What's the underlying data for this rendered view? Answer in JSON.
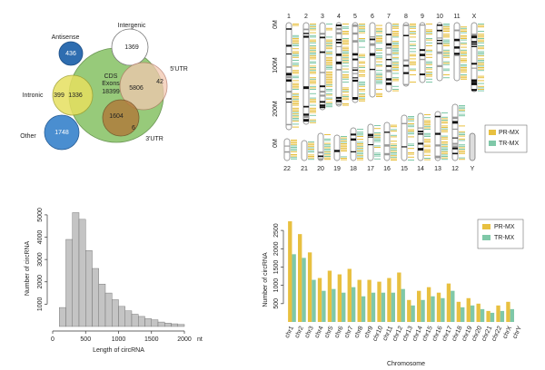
{
  "venn": {
    "antisense": {
      "label": "Antisense",
      "count": "436"
    },
    "intergenic": {
      "label": "Intergenic",
      "count": "1369"
    },
    "intronic": {
      "label": "Intronic",
      "counts": [
        "399",
        "1336"
      ]
    },
    "cds": {
      "label": [
        "CDS",
        "Exons"
      ],
      "count": "18399"
    },
    "utr5": {
      "label": "5'UTR",
      "counts": [
        "5806",
        "42"
      ]
    },
    "utr3": {
      "label": "3'UTR",
      "counts": [
        "1604",
        "6"
      ]
    },
    "other": {
      "label": "Other",
      "count": "1748"
    }
  },
  "ideogram": {
    "top_chromosomes": [
      "1",
      "2",
      "3",
      "4",
      "5",
      "6",
      "7",
      "8",
      "9",
      "10",
      "11",
      "X"
    ],
    "bottom_chromosomes": [
      "22",
      "21",
      "20",
      "19",
      "18",
      "17",
      "16",
      "15",
      "14",
      "13",
      "12",
      "Y"
    ],
    "axis_labels": [
      "0M",
      "100M",
      "200M",
      "0M"
    ],
    "legend": [
      {
        "name": "PR-MX",
        "color": "#e8c040"
      },
      {
        "name": "TR-MX",
        "color": "#7fc8a8"
      }
    ]
  },
  "chart_data": [
    {
      "type": "histogram",
      "bins": [
        100,
        200,
        300,
        400,
        500,
        600,
        700,
        800,
        900,
        1000,
        1100,
        1200,
        1300,
        1400,
        1500,
        1600,
        1700,
        1800,
        1900,
        2000
      ],
      "values": [
        850,
        3900,
        5100,
        4800,
        3400,
        2600,
        1900,
        1500,
        1200,
        900,
        700,
        550,
        450,
        350,
        300,
        200,
        150,
        120,
        90
      ],
      "color": "#c4c4c4",
      "xlim": [
        0,
        2000
      ],
      "xticks": [
        0,
        500,
        1000,
        1500,
        2000
      ],
      "ylim": [
        0,
        5200
      ],
      "yticks": [
        1000,
        2000,
        3000,
        4000,
        5000
      ],
      "x_label": "Length of circRNA",
      "x_unit": "nt",
      "y_label": "Number of circRNA"
    },
    {
      "type": "bar",
      "categories": [
        "chr1",
        "chr2",
        "chr3",
        "chr4",
        "chr5",
        "chr6",
        "chr7",
        "chr8",
        "chr9",
        "chr10",
        "chr11",
        "chr12",
        "chr13",
        "chr14",
        "chr15",
        "chr16",
        "chr17",
        "chr18",
        "chr19",
        "chr20",
        "chr21",
        "chr22",
        "chrX",
        "chrY"
      ],
      "series": [
        {
          "name": "PR-MX",
          "color": "#e8c040",
          "values": [
            2750,
            2400,
            1900,
            1200,
            1400,
            1300,
            1450,
            1150,
            1150,
            1100,
            1200,
            1350,
            600,
            850,
            950,
            800,
            1050,
            550,
            650,
            500,
            300,
            450,
            550,
            0
          ]
        },
        {
          "name": "TR-MX",
          "color": "#7fc8a8",
          "values": [
            1850,
            1750,
            1150,
            850,
            900,
            800,
            950,
            700,
            800,
            800,
            800,
            900,
            450,
            600,
            700,
            650,
            850,
            400,
            450,
            350,
            250,
            300,
            350,
            0
          ]
        }
      ],
      "ylim": [
        0,
        2800
      ],
      "yticks": [
        500,
        1000,
        1500,
        2000,
        2500
      ],
      "x_label": "Chromosome",
      "y_label": "Number of circRNA",
      "legend": "upper right"
    }
  ]
}
